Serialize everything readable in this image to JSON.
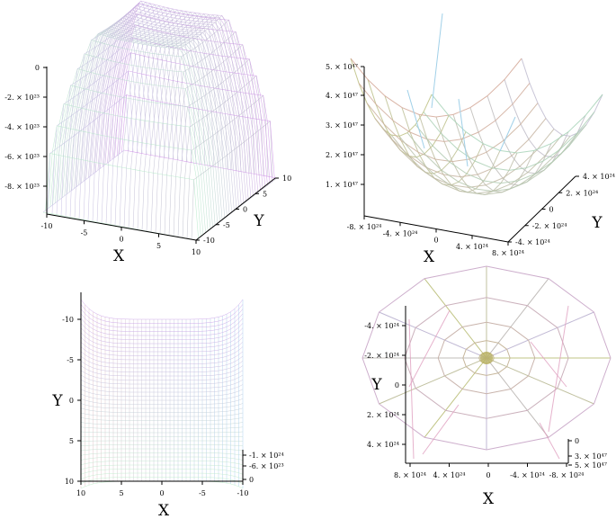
{
  "chart_data": [
    {
      "type": "surface",
      "panel": "top-left",
      "view": "3d",
      "xlabel": "X",
      "ylabel": "Y",
      "x_range": [
        -10,
        10
      ],
      "y_range": [
        -10,
        10
      ],
      "z_range": [
        -9e+23,
        0
      ],
      "x_ticks": [
        "-10",
        "-5",
        "0",
        "5",
        "10"
      ],
      "y_ticks": [
        "-10",
        "-5",
        "0",
        "5",
        "10"
      ],
      "z_ticks": [
        "0",
        "-2. × 10²³",
        "-4. × 10²³",
        "-6. × 10²³",
        "-8. × 10²³"
      ],
      "surface_colors": [
        "#b08cf0",
        "#f090e0",
        "#a0e8f0",
        "#c8f0a0"
      ]
    },
    {
      "type": "surface",
      "panel": "top-right",
      "view": "3d",
      "xlabel": "X",
      "ylabel": "Y",
      "x_range": [
        -8e+24,
        8e+24
      ],
      "y_range": [
        -4e+24,
        4e+24
      ],
      "z_range": [
        0,
        5e+47
      ],
      "x_ticks": [
        "-8. × 10²⁴",
        "-4. × 10²⁴",
        "0",
        "4. × 10²⁴",
        "8. × 10²⁴"
      ],
      "y_ticks": [
        "4. × 10²⁴",
        "2. × 10²⁴",
        "0",
        "-2. × 10²⁴",
        "-4. × 10²⁴"
      ],
      "z_ticks": [
        "5. × 10⁴⁷",
        "4. × 10⁴⁷",
        "3. × 10⁴⁷",
        "2. × 10⁴⁷",
        "1. × 10⁴⁷"
      ],
      "surface_colors": [
        "#c8b070",
        "#e0a0c0",
        "#a0d8e0",
        "#b0d090"
      ]
    },
    {
      "type": "surface",
      "panel": "bottom-left",
      "view": "top",
      "xlabel": "X",
      "ylabel": "Y",
      "x_range": [
        10,
        -10
      ],
      "y_range": [
        -10,
        10
      ],
      "x_ticks": [
        "10",
        "5",
        "0",
        "-5",
        "-10"
      ],
      "y_ticks": [
        "-10",
        "-5",
        "0",
        "5",
        "10"
      ],
      "z_ticks": [
        "-1. × 10²⁴",
        "-6. × 10²³",
        "0"
      ],
      "surface_colors": [
        "#f090e0",
        "#a0a8f0",
        "#a0f0f0",
        "#d8f0a0"
      ]
    },
    {
      "type": "surface",
      "panel": "bottom-right",
      "view": "top",
      "xlabel": "X",
      "ylabel": "Y",
      "x_range": [
        8e+24,
        -8e+24
      ],
      "y_range": [
        -4e+24,
        4e+24
      ],
      "x_ticks": [
        "8. × 10²⁴",
        "4. × 10²⁴",
        "0",
        "-4. × 10²⁴",
        "-8. × 10²⁴"
      ],
      "y_ticks": [
        "-4. × 10²⁴",
        "-2. × 10²⁴",
        "0",
        "2. × 10²⁴",
        "4. × 10²⁴"
      ],
      "z_ticks": [
        "0",
        "3. × 10⁴⁷",
        "5. × 10⁴⁷"
      ],
      "surface_colors": [
        "#c8b070",
        "#e0a0c0",
        "#a0d0e8",
        "#b8d898"
      ]
    }
  ]
}
